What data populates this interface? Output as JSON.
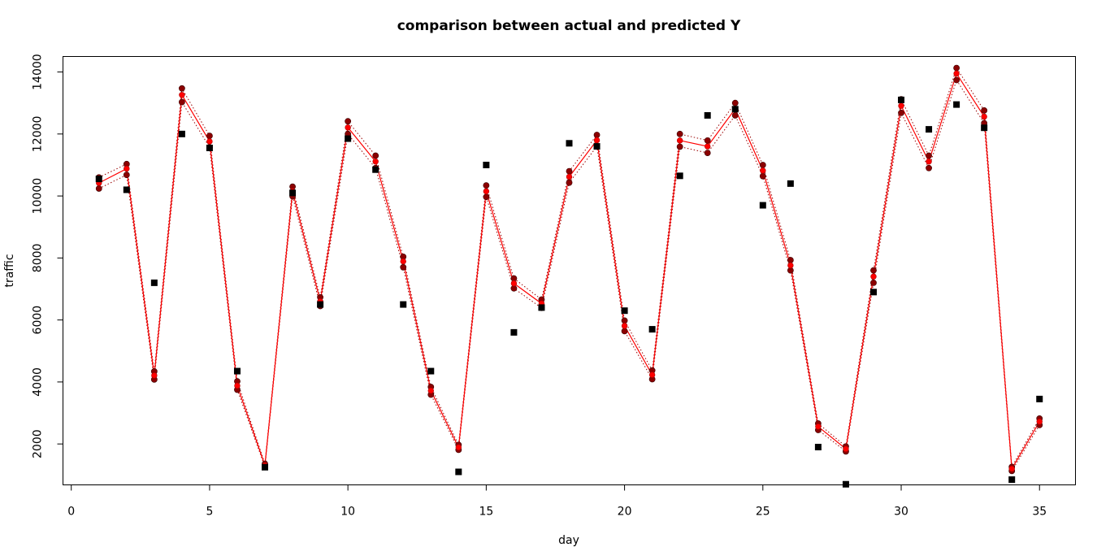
{
  "chart_data": {
    "type": "line",
    "title": "comparison between actual and predicted Y",
    "xlabel": "day",
    "ylabel": "traffic",
    "xlim": [
      -0.3,
      36.3
    ],
    "ylim": [
      680,
      14500
    ],
    "x_ticks": [
      0,
      5,
      10,
      15,
      20,
      25,
      30,
      35
    ],
    "y_ticks": [
      2000,
      4000,
      6000,
      8000,
      10000,
      12000,
      14000
    ],
    "grid": false,
    "legend": "none",
    "colors": {
      "actual": "#000000",
      "predicted": "#ff0000",
      "interval_lines": "#990000",
      "interval_points": "#8b0000",
      "axis": "#000000"
    },
    "series": [
      {
        "key": "actual",
        "style": "square-points",
        "x": [
          1,
          2,
          3,
          4,
          5,
          6,
          7,
          8,
          9,
          10,
          11,
          12,
          13,
          14,
          15,
          16,
          17,
          18,
          19,
          20,
          21,
          22,
          23,
          24,
          25,
          26,
          27,
          28,
          29,
          30,
          31,
          32,
          33,
          34,
          35
        ],
        "values": [
          10550,
          10200,
          7200,
          12000,
          11550,
          4350,
          1250,
          10100,
          6500,
          11850,
          10850,
          6500,
          4350,
          1100,
          11000,
          5600,
          6400,
          11700,
          11600,
          6300,
          5700,
          10650,
          12600,
          12800,
          9700,
          10400,
          1900,
          700,
          6900,
          13100,
          12150,
          12950,
          12200,
          850,
          3450
        ]
      },
      {
        "key": "predicted",
        "style": "line-with-points",
        "x": [
          1,
          2,
          3,
          4,
          5,
          6,
          7,
          8,
          9,
          10,
          11,
          12,
          13,
          14,
          15,
          16,
          17,
          18,
          19,
          20,
          21,
          22,
          23,
          24,
          25,
          26,
          27,
          28,
          29,
          30,
          31,
          32,
          33,
          34,
          35
        ],
        "values": [
          10420,
          10880,
          4210,
          13260,
          11760,
          3880,
          1310,
          10150,
          6600,
          12210,
          11110,
          7890,
          3720,
          1890,
          10150,
          7180,
          6530,
          10620,
          11800,
          5810,
          4230,
          11790,
          11600,
          12810,
          10820,
          7760,
          2560,
          1840,
          7400,
          12910,
          11110,
          13950,
          12560,
          1200,
          2720
        ]
      },
      {
        "key": "upper",
        "style": "dotted-line-with-points",
        "x": [
          1,
          2,
          3,
          4,
          5,
          6,
          7,
          8,
          9,
          10,
          11,
          12,
          13,
          14,
          15,
          16,
          17,
          18,
          19,
          20,
          21,
          22,
          23,
          24,
          25,
          26,
          27,
          28,
          29,
          30,
          31,
          32,
          33,
          34,
          35
        ],
        "values": [
          10600,
          11030,
          4340,
          13470,
          11940,
          4020,
          1360,
          10300,
          6730,
          12410,
          11300,
          8040,
          3840,
          1970,
          10340,
          7340,
          6660,
          10800,
          11970,
          5980,
          4370,
          12000,
          11790,
          13000,
          11000,
          7930,
          2660,
          1920,
          7600,
          13120,
          11300,
          14130,
          12760,
          1260,
          2820
        ]
      },
      {
        "key": "lower",
        "style": "dotted-line-with-points",
        "x": [
          1,
          2,
          3,
          4,
          5,
          6,
          7,
          8,
          9,
          10,
          11,
          12,
          13,
          14,
          15,
          16,
          17,
          18,
          19,
          20,
          21,
          22,
          23,
          24,
          25,
          26,
          27,
          28,
          29,
          30,
          31,
          32,
          33,
          34,
          35
        ],
        "values": [
          10240,
          10680,
          4080,
          13030,
          11570,
          3750,
          1260,
          9990,
          6450,
          12000,
          10900,
          7700,
          3590,
          1810,
          9970,
          7020,
          6390,
          10430,
          11600,
          5640,
          4090,
          11590,
          11390,
          12600,
          10640,
          7600,
          2450,
          1760,
          7200,
          12680,
          10900,
          13740,
          12350,
          1130,
          2610
        ]
      }
    ]
  }
}
